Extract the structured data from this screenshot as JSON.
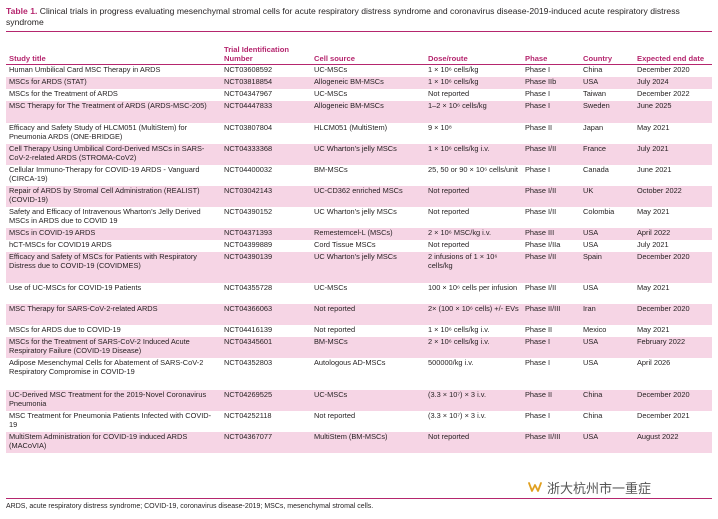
{
  "caption": {
    "label": "Table 1.",
    "text": " Clinical trials in progress evaluating mesenchymal stromal cells for acute respiratory distress syndrome and coronavirus disease-2019-induced acute respiratory distress syndrome"
  },
  "headers": {
    "study": "Study title",
    "trial": "Trial Identification Number",
    "cell": "Cell source",
    "dose": "Dose/route",
    "phase": "Phase",
    "country": "Country",
    "end": "Expected end date"
  },
  "rows": [
    {
      "study": "Human Umbilical Card MSC Therapy in ARDS",
      "trial": "NCT03608592",
      "cell": "UC-MSCs",
      "dose": "1 × 10⁶ cells/kg",
      "phase": "Phase I",
      "country": "China",
      "end": "December 2020"
    },
    {
      "study": "MSCs for ARDS (STAT)",
      "trial": "NCT03818854",
      "cell": "Allogeneic BM-MSCs",
      "dose": "1 × 10⁶ cells/kg",
      "phase": "Phase IIb",
      "country": "USA",
      "end": "July 2024"
    },
    {
      "study": "MSCs for the Treatment of ARDS",
      "trial": "NCT04347967",
      "cell": "UC-MSCs",
      "dose": "Not reported",
      "phase": "Phase I",
      "country": "Taiwan",
      "end": "December 2022"
    },
    {
      "study": "MSC Therapy for The Treatment of ARDS (ARDS-MSC-205)",
      "trial": "NCT04447833",
      "cell": "Allogeneic BM-MSCs",
      "dose": "1–2 × 10⁶ cells/kg",
      "phase": "Phase I",
      "country": "Sweden",
      "end": "June 2025"
    },
    {
      "study": "Efficacy and Safety Study of HLCM051 (MultiStem) for Pneumonia ARDS (ONE-BRIDGE)",
      "trial": "NCT03807804",
      "cell": "HLCM051 (MultiStem)",
      "dose": "9 × 10⁸",
      "phase": "Phase II",
      "country": "Japan",
      "end": "May 2021"
    },
    {
      "study": "Cell Therapy Using Umbilical Cord-Derived MSCs in SARS-CoV-2-related ARDS (STROMA-CoV2)",
      "trial": "NCT04333368",
      "cell": "UC Wharton’s jelly MSCs",
      "dose": "1 × 10⁶ cells/kg i.v.",
      "phase": "Phase I/II",
      "country": "France",
      "end": "July 2021"
    },
    {
      "study": "Cellular Immuno-Therapy for COVID-19 ARDS - Vanguard (CIRCA-19)",
      "trial": "NCT04400032",
      "cell": "BM-MSCs",
      "dose": "25, 50 or 90 × 10⁶ cells/unit",
      "phase": "Phase I",
      "country": "Canada",
      "end": "June 2021"
    },
    {
      "study": "Repair of ARDS by Stromal Cell Administration (REALIST) (COVID-19)",
      "trial": "NCT03042143",
      "cell": "UC-CD362 enriched MSCs",
      "dose": "Not reported",
      "phase": "Phase I/II",
      "country": "UK",
      "end": "October 2022"
    },
    {
      "study": "Safety and Efficacy of Intravenous Wharton’s Jelly Derived MSCs in ARDS due to COVID 19",
      "trial": "NCT04390152",
      "cell": "UC Wharton’s jelly MSCs",
      "dose": "Not reported",
      "phase": "Phase I/II",
      "country": "Colombia",
      "end": "May 2021"
    },
    {
      "study": "MSCs in COVID-19 ARDS",
      "trial": "NCT04371393",
      "cell": "Remestemcel-L (MSCs)",
      "dose": "2 × 10⁶ MSC/kg i.v.",
      "phase": "Phase III",
      "country": "USA",
      "end": "April 2022"
    },
    {
      "study": "hCT-MSCs for COVID19 ARDS",
      "trial": "NCT04399889",
      "cell": "Cord Tissue MSCs",
      "dose": "Not reported",
      "phase": "Phase I/IIa",
      "country": "USA",
      "end": "July 2021"
    },
    {
      "study": "Efficacy and Safety of MSCs for Patients with Respiratory Distress due to COVID-19 (COVIDMES)",
      "trial": "NCT04390139",
      "cell": "UC Wharton’s jelly MSCs",
      "dose": "2 infusions of 1 × 10⁶ cells/kg",
      "phase": "Phase I/II",
      "country": "Spain",
      "end": "December 2020"
    },
    {
      "study": "Use of UC-MSCs for COVID-19 Patients",
      "trial": "NCT04355728",
      "cell": "UC-MSCs",
      "dose": "100 × 10⁶ cells per infusion",
      "phase": "Phase I/II",
      "country": "USA",
      "end": "May 2021"
    },
    {
      "study": "MSC Therapy for SARS-CoV-2-related ARDS",
      "trial": "NCT04366063",
      "cell": "Not reported",
      "dose": "2× (100 × 10⁶ cells) +/- EVs",
      "phase": "Phase II/III",
      "country": "Iran",
      "end": "December 2020"
    },
    {
      "study": "MSCs for ARDS due to COVID-19",
      "trial": "NCT04416139",
      "cell": "Not reported",
      "dose": "1 × 10⁶ cells/kg i.v.",
      "phase": "Phase II",
      "country": "Mexico",
      "end": "May 2021"
    },
    {
      "study": "MSCs for the Treatment of SARS-CoV-2 Induced Acute Respiratory Failure (COVID-19 Disease)",
      "trial": "NCT04345601",
      "cell": "BM-MSCs",
      "dose": "2 × 10⁶ cells/kg i.v.",
      "phase": "Phase I",
      "country": "USA",
      "end": "February 2022"
    },
    {
      "study": "Adipose Mesenchymal Cells for Abatement of SARS-CoV-2 Respiratory Compromise in COVID-19",
      "trial": "NCT04352803",
      "cell": "Autologous AD-MSCs",
      "dose": "500000/kg i.v.",
      "phase": "Phase I",
      "country": "USA",
      "end": "April 2026"
    },
    {
      "study": "UC-Derived MSC Treatment for the 2019-Novel Coronavirus Pneumonia",
      "trial": "NCT04269525",
      "cell": "UC-MSCs",
      "dose": "(3.3 × 10⁷) × 3 i.v.",
      "phase": "Phase II",
      "country": "China",
      "end": "December 2020"
    },
    {
      "study": "MSC Treatment for Pneumonia Patients Infected with COVID-19",
      "trial": "NCT04252118",
      "cell": "Not reported",
      "dose": "(3.3 × 10⁷) × 3 i.v.",
      "phase": "Phase I",
      "country": "China",
      "end": "December 2021"
    },
    {
      "study": "MultiStem Administration for COVID-19 induced ARDS (MACoVIA)",
      "trial": "NCT04367077",
      "cell": "MultiStem (BM-MSCs)",
      "dose": "Not reported",
      "phase": "Phase II/III",
      "country": "USA",
      "end": "August 2022"
    }
  ],
  "footnote": "ARDS, acute respiratory distress syndrome; COVID-19, coronavirus disease-2019; MSCs, mesenchymal stromal cells.",
  "watermark": {
    "text": "浙大杭州市一重症",
    "icon": "wechat-channel-icon"
  },
  "colors": {
    "accent": "#b5266e",
    "row_shade": "#f6d5e5",
    "text": "#231f20"
  }
}
